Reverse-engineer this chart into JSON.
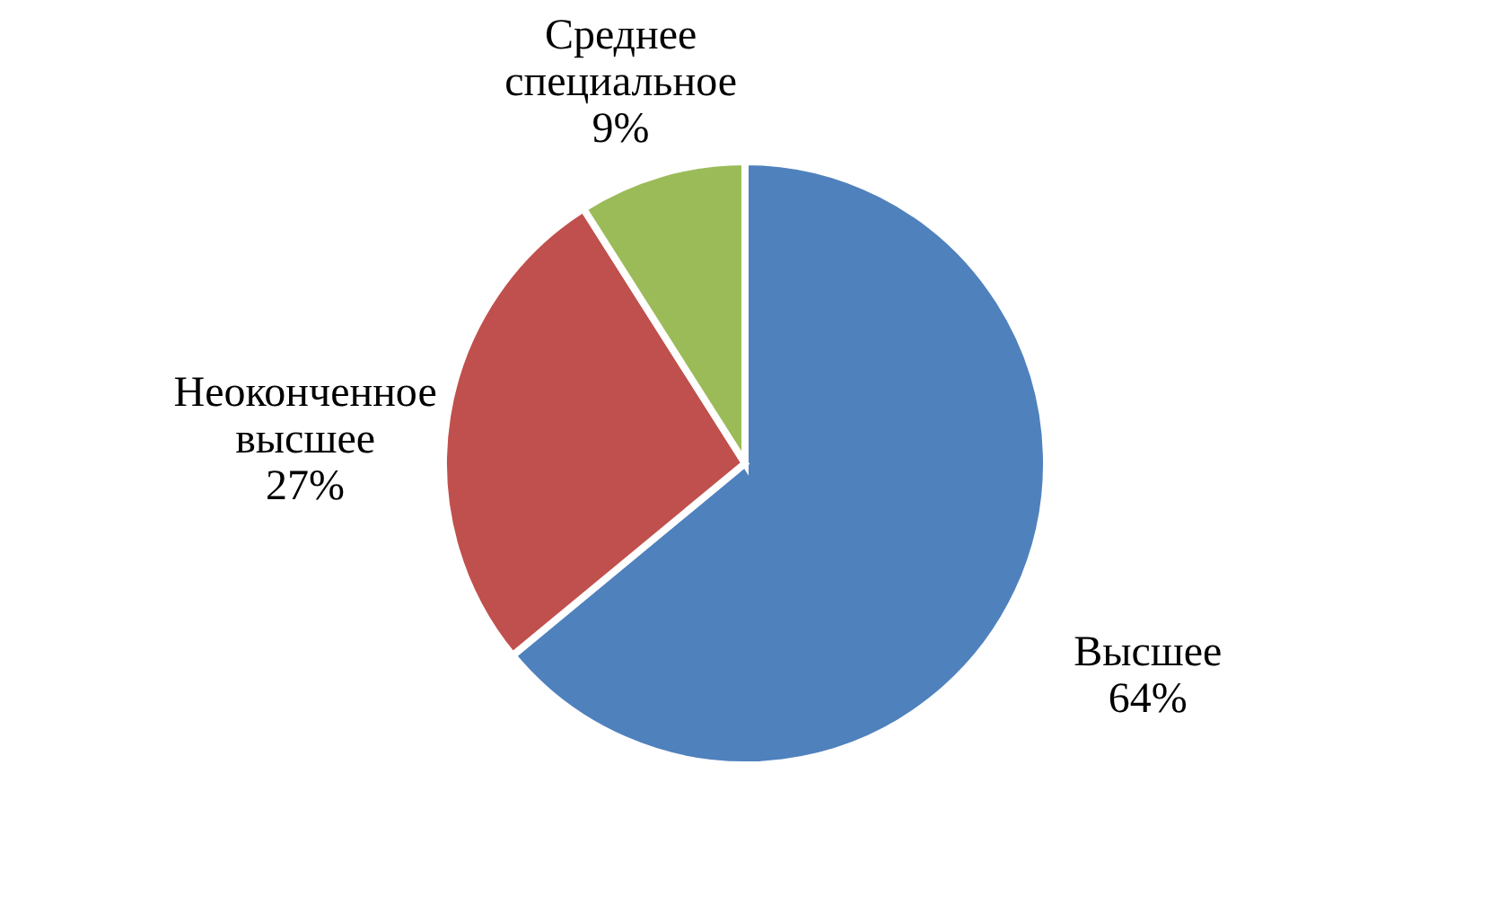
{
  "chart_data": {
    "type": "pie",
    "categories": [
      "Высшее",
      "Неоконченное высшее",
      "Среднее специальное"
    ],
    "values": [
      64,
      27,
      9
    ],
    "value_labels": [
      "64%",
      "27%",
      "9%"
    ],
    "colors": [
      "#4f81bd",
      "#c0504d",
      "#9bbb59"
    ],
    "legend": false
  }
}
